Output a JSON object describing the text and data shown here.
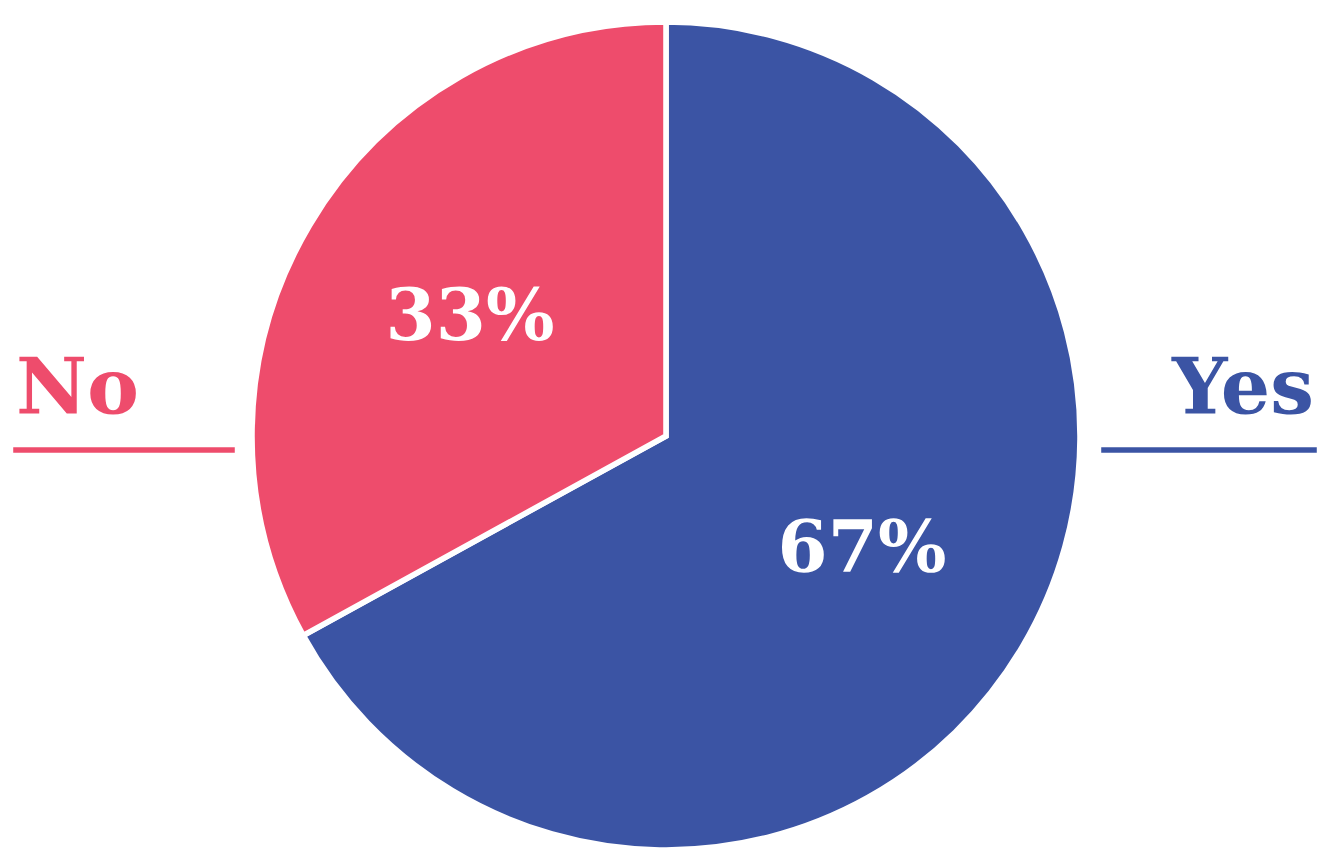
{
  "chart_data": {
    "type": "pie",
    "categories": [
      "Yes",
      "No"
    ],
    "values": [
      67,
      33
    ],
    "colors": [
      "#3b54a4",
      "#ee4c6c"
    ],
    "value_labels": [
      "67%",
      "33%"
    ]
  }
}
